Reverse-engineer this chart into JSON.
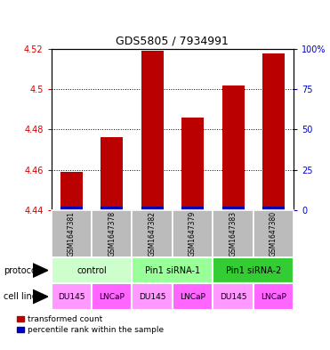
{
  "title": "GDS5805 / 7934991",
  "samples": [
    "GSM1647381",
    "GSM1647378",
    "GSM1647382",
    "GSM1647379",
    "GSM1647383",
    "GSM1647380"
  ],
  "red_values": [
    4.459,
    4.476,
    4.519,
    4.486,
    4.502,
    4.518
  ],
  "blue_percentiles": [
    1,
    2,
    2,
    2,
    2,
    2
  ],
  "ylim_left": [
    4.44,
    4.52
  ],
  "ylim_right": [
    0,
    100
  ],
  "yticks_left": [
    4.44,
    4.46,
    4.48,
    4.5,
    4.52
  ],
  "yticks_right": [
    0,
    25,
    50,
    75,
    100
  ],
  "ytick_labels_left": [
    "4.44",
    "4.46",
    "4.48",
    "4.5",
    "4.52"
  ],
  "ytick_labels_right": [
    "0",
    "25",
    "50",
    "75",
    "100%"
  ],
  "bar_width": 0.55,
  "protocol_groups": [
    {
      "label": "control",
      "span": [
        0,
        2
      ],
      "color": "#ccffcc"
    },
    {
      "label": "Pin1 siRNA-1",
      "span": [
        2,
        4
      ],
      "color": "#99ff99"
    },
    {
      "label": "Pin1 siRNA-2",
      "span": [
        4,
        6
      ],
      "color": "#33cc33"
    }
  ],
  "cell_lines": [
    "DU145",
    "LNCaP",
    "DU145",
    "LNCaP",
    "DU145",
    "LNCaP"
  ],
  "du145_color": "#ff99ff",
  "lncap_color": "#ff66ff",
  "sample_bg": "#bbbbbb",
  "legend_red_label": "transformed count",
  "legend_blue_label": "percentile rank within the sample",
  "red_color": "#bb0000",
  "blue_color": "#0000bb",
  "left_axis_color": "#cc0000",
  "right_axis_color": "#0000cc",
  "title_fontsize": 9,
  "tick_fontsize": 7,
  "sample_fontsize": 5.5,
  "label_fontsize": 7,
  "protocol_fontsize": 7,
  "cell_fontsize": 6.5,
  "legend_fontsize": 6.5
}
